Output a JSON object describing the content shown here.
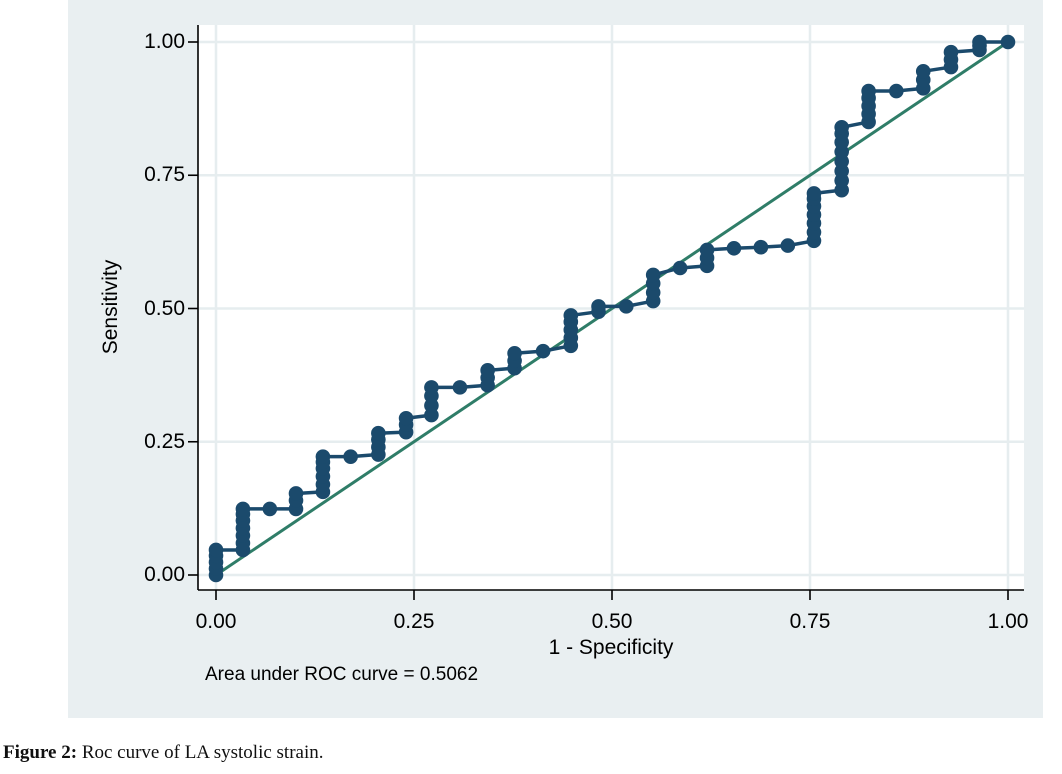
{
  "figure": {
    "caption_prefix": "Figure 2:",
    "caption_text": " Roc curve of LA systolic strain."
  },
  "chart_data": {
    "type": "line",
    "title": "",
    "xlabel": "1 - Specificity",
    "ylabel": "Sensitivity",
    "annotation": "Area under ROC curve = 0.5062",
    "auc": 0.5062,
    "xlim": [
      0,
      1
    ],
    "ylim": [
      0,
      1
    ],
    "grid": true,
    "x_ticks": [
      {
        "label": "0.00",
        "value": 0.0
      },
      {
        "label": "0.25",
        "value": 0.25
      },
      {
        "label": "0.50",
        "value": 0.5
      },
      {
        "label": "0.75",
        "value": 0.75
      },
      {
        "label": "1.00",
        "value": 1.0
      }
    ],
    "y_ticks": [
      {
        "label": "0.00",
        "value": 0.0
      },
      {
        "label": "0.25",
        "value": 0.25
      },
      {
        "label": "0.50",
        "value": 0.5
      },
      {
        "label": "0.75",
        "value": 0.75
      },
      {
        "label": "1.00",
        "value": 1.0
      }
    ],
    "colors": {
      "roc": "#1b4a6c",
      "reference": "#2f7d68",
      "panel": "#e9eff1",
      "grid": "#e6edef",
      "plot_bg": "#ffffff",
      "axis": "#000000"
    },
    "series": [
      {
        "name": "ROC step curve with markers",
        "style": "step-scatter",
        "points": [
          [
            0.0,
            0.0
          ],
          [
            0.0,
            0.012
          ],
          [
            0.0,
            0.024
          ],
          [
            0.0,
            0.036
          ],
          [
            0.0,
            0.047
          ],
          [
            0.034,
            0.047
          ],
          [
            0.034,
            0.06
          ],
          [
            0.034,
            0.074
          ],
          [
            0.034,
            0.088
          ],
          [
            0.034,
            0.102
          ],
          [
            0.034,
            0.114
          ],
          [
            0.034,
            0.124
          ],
          [
            0.068,
            0.124
          ],
          [
            0.101,
            0.124
          ],
          [
            0.101,
            0.14
          ],
          [
            0.101,
            0.153
          ],
          [
            0.135,
            0.156
          ],
          [
            0.135,
            0.17
          ],
          [
            0.135,
            0.185
          ],
          [
            0.135,
            0.2
          ],
          [
            0.135,
            0.212
          ],
          [
            0.135,
            0.222
          ],
          [
            0.17,
            0.222
          ],
          [
            0.205,
            0.226
          ],
          [
            0.205,
            0.24
          ],
          [
            0.205,
            0.254
          ],
          [
            0.205,
            0.266
          ],
          [
            0.24,
            0.268
          ],
          [
            0.24,
            0.282
          ],
          [
            0.24,
            0.294
          ],
          [
            0.272,
            0.3
          ],
          [
            0.272,
            0.318
          ],
          [
            0.272,
            0.336
          ],
          [
            0.272,
            0.352
          ],
          [
            0.308,
            0.352
          ],
          [
            0.343,
            0.356
          ],
          [
            0.343,
            0.37
          ],
          [
            0.343,
            0.384
          ],
          [
            0.377,
            0.388
          ],
          [
            0.377,
            0.402
          ],
          [
            0.377,
            0.416
          ],
          [
            0.413,
            0.42
          ],
          [
            0.448,
            0.43
          ],
          [
            0.448,
            0.445
          ],
          [
            0.448,
            0.46
          ],
          [
            0.448,
            0.475
          ],
          [
            0.448,
            0.487
          ],
          [
            0.483,
            0.494
          ],
          [
            0.483,
            0.504
          ],
          [
            0.518,
            0.504
          ],
          [
            0.552,
            0.514
          ],
          [
            0.552,
            0.53
          ],
          [
            0.552,
            0.547
          ],
          [
            0.552,
            0.563
          ],
          [
            0.586,
            0.576
          ],
          [
            0.62,
            0.58
          ],
          [
            0.62,
            0.595
          ],
          [
            0.62,
            0.61
          ],
          [
            0.654,
            0.613
          ],
          [
            0.688,
            0.615
          ],
          [
            0.722,
            0.618
          ],
          [
            0.755,
            0.627
          ],
          [
            0.755,
            0.643
          ],
          [
            0.755,
            0.66
          ],
          [
            0.755,
            0.676
          ],
          [
            0.755,
            0.692
          ],
          [
            0.755,
            0.706
          ],
          [
            0.755,
            0.716
          ],
          [
            0.79,
            0.722
          ],
          [
            0.79,
            0.74
          ],
          [
            0.79,
            0.758
          ],
          [
            0.79,
            0.776
          ],
          [
            0.79,
            0.794
          ],
          [
            0.79,
            0.812
          ],
          [
            0.79,
            0.828
          ],
          [
            0.79,
            0.84
          ],
          [
            0.824,
            0.85
          ],
          [
            0.824,
            0.865
          ],
          [
            0.824,
            0.88
          ],
          [
            0.824,
            0.895
          ],
          [
            0.824,
            0.908
          ],
          [
            0.859,
            0.908
          ],
          [
            0.893,
            0.913
          ],
          [
            0.893,
            0.929
          ],
          [
            0.893,
            0.945
          ],
          [
            0.928,
            0.953
          ],
          [
            0.928,
            0.967
          ],
          [
            0.928,
            0.981
          ],
          [
            0.964,
            0.985
          ],
          [
            0.964,
            0.993
          ],
          [
            0.964,
            1.0
          ],
          [
            1.0,
            1.0
          ]
        ]
      },
      {
        "name": "Reference diagonal",
        "style": "line",
        "points": [
          [
            0,
            0
          ],
          [
            1,
            1
          ]
        ]
      }
    ]
  }
}
